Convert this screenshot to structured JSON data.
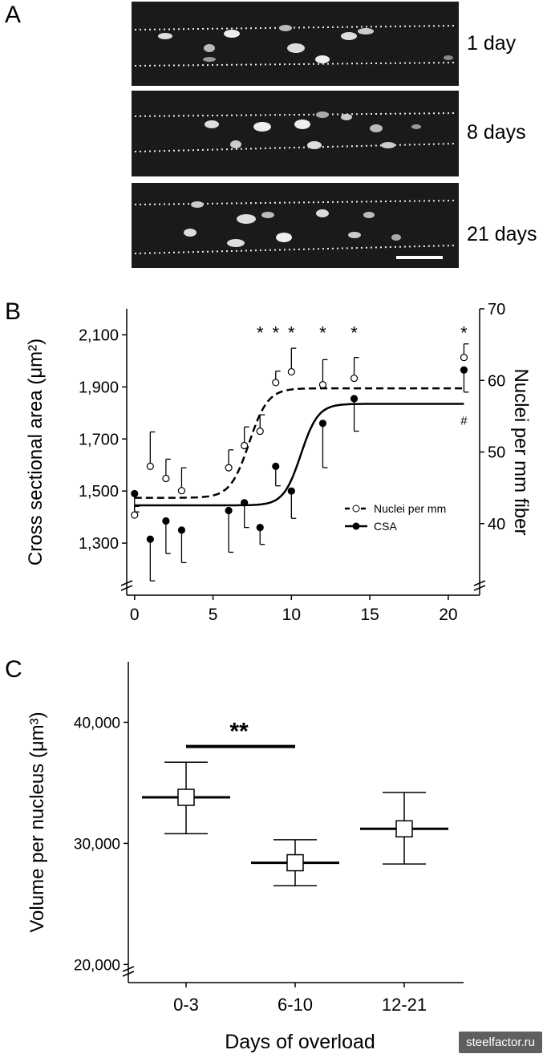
{
  "panels": {
    "a": {
      "letter": "A",
      "images": [
        {
          "label": "1 day"
        },
        {
          "label": "8 days"
        },
        {
          "label": "21 days"
        }
      ]
    },
    "b": {
      "letter": "B"
    },
    "c": {
      "letter": "C"
    }
  },
  "chart_data": [
    {
      "type": "scatter",
      "panel": "B",
      "xlabel": "",
      "ylabel": "Cross sectional area (μm²)",
      "y2label": "Nuclei per mm fiber",
      "xlim": [
        -0.5,
        22
      ],
      "ylim": [
        1100,
        2200
      ],
      "y2lim": [
        30,
        70
      ],
      "x_ticks": [
        "0",
        "5",
        "10",
        "15",
        "20"
      ],
      "y_ticks": [
        "1,300",
        "1,500",
        "1,700",
        "1,900",
        "2,100"
      ],
      "y2_ticks": [
        "40",
        "50",
        "60",
        "70"
      ],
      "series": [
        {
          "name": "Nuclei per mm",
          "axis": "right",
          "marker": "open-circle",
          "points": [
            {
              "x": 0,
              "y": 41.2,
              "err": 1.2
            },
            {
              "x": 1,
              "y": 48.0,
              "err": 4.8
            },
            {
              "x": 2,
              "y": 46.3,
              "err": 2.7
            },
            {
              "x": 3,
              "y": 44.6,
              "err": 3.2
            },
            {
              "x": 6,
              "y": 47.8,
              "err": 2.5
            },
            {
              "x": 7,
              "y": 50.9,
              "err": 2.6
            },
            {
              "x": 8,
              "y": 52.9,
              "err": 2.3
            },
            {
              "x": 9,
              "y": 59.7,
              "err": 1.6
            },
            {
              "x": 10,
              "y": 61.2,
              "err": 3.3
            },
            {
              "x": 12,
              "y": 59.4,
              "err": 3.5
            },
            {
              "x": 14,
              "y": 60.3,
              "err": 2.9
            },
            {
              "x": 21,
              "y": 63.2,
              "err": 1.9
            }
          ],
          "fit": "sigmoid",
          "fit_low": 43.6,
          "fit_high": 58.9,
          "fit_mid": 7.3,
          "fit_slope": 0.6
        },
        {
          "name": "CSA",
          "axis": "left",
          "marker": "filled-circle",
          "points": [
            {
              "x": 0,
              "y": 1490,
              "err": 70
            },
            {
              "x": 1,
              "y": 1315,
              "err": 160
            },
            {
              "x": 2,
              "y": 1385,
              "err": 125
            },
            {
              "x": 3,
              "y": 1350,
              "err": 125
            },
            {
              "x": 6,
              "y": 1425,
              "err": 160
            },
            {
              "x": 7,
              "y": 1455,
              "err": 95
            },
            {
              "x": 8,
              "y": 1360,
              "err": 65
            },
            {
              "x": 9,
              "y": 1595,
              "err": 75
            },
            {
              "x": 10,
              "y": 1500,
              "err": 105
            },
            {
              "x": 12,
              "y": 1760,
              "err": 170
            },
            {
              "x": 14,
              "y": 1855,
              "err": 125
            },
            {
              "x": 21,
              "y": 1965,
              "err": 85
            }
          ],
          "fit": "sigmoid",
          "fit_low": 1445,
          "fit_high": 1835,
          "fit_mid": 10.6,
          "fit_slope": 0.55
        }
      ],
      "annotations": [
        {
          "text": "*",
          "x": 8
        },
        {
          "text": "*",
          "x": 9
        },
        {
          "text": "*",
          "x": 10
        },
        {
          "text": "*",
          "x": 12
        },
        {
          "text": "*",
          "x": 14
        },
        {
          "text": "*",
          "x": 21
        },
        {
          "text": "#",
          "x": 21
        }
      ],
      "legend": {
        "placement": "bottom-right",
        "entries": [
          "Nuclei per mm",
          "CSA"
        ]
      }
    },
    {
      "type": "scatter",
      "panel": "C",
      "xlabel": "Days of overload",
      "ylabel": "Volume per nucleus (μm³)",
      "categories": [
        "0-3",
        "6-10",
        "12-21"
      ],
      "ylim": [
        18500,
        45000
      ],
      "y_ticks": [
        "20,000",
        "30,000",
        "40,000"
      ],
      "marker": "open-square",
      "values": [
        33800,
        28400,
        31200
      ],
      "err_high": [
        36700,
        30300,
        34200
      ],
      "err_low": [
        30800,
        26500,
        28300
      ],
      "annotation": {
        "text": "**",
        "from": "0-3",
        "to": "6-10"
      }
    }
  ],
  "watermark": "steelfactor.ru"
}
